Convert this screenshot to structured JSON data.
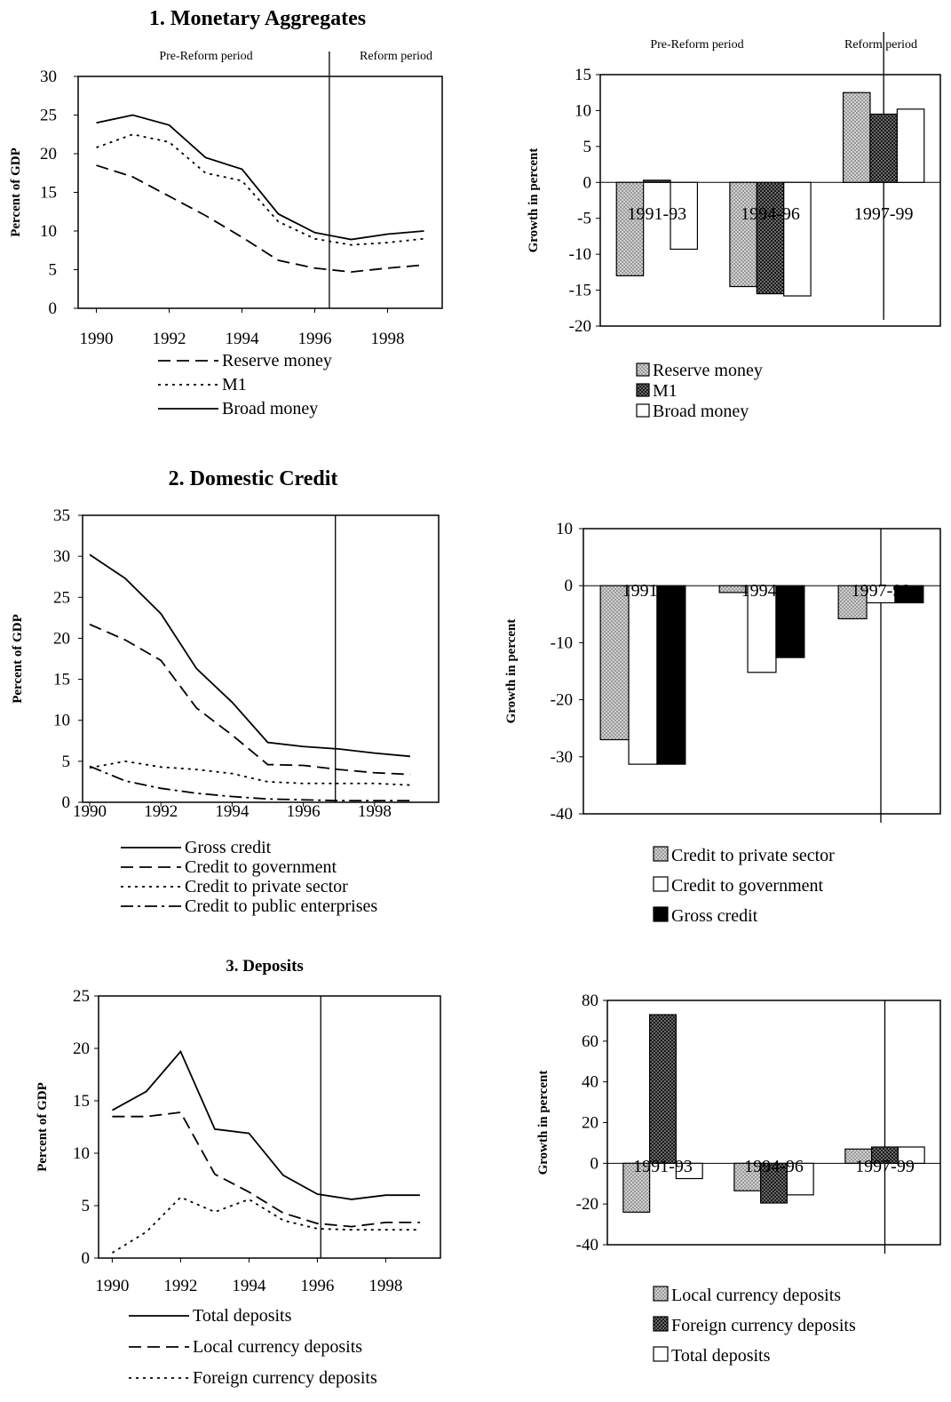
{
  "sections": [
    {
      "title": "1. Monetary Aggregates"
    },
    {
      "title": "2. Domestic Credit"
    },
    {
      "title": "3. Deposits"
    }
  ],
  "chart_data": [
    {
      "id": "monetary-line",
      "type": "line",
      "title": "1. Monetary Aggregates",
      "ylabel": "Percent of GDP",
      "xlabel": "",
      "xlim": [
        1989.5,
        1999.5
      ],
      "ylim": [
        0,
        30
      ],
      "yticks": [
        0,
        5,
        10,
        15,
        20,
        25,
        30
      ],
      "xticks": [
        1990,
        1992,
        1994,
        1996,
        1998
      ],
      "divider": 1996.4,
      "period_labels": [
        "Pre-Reform period",
        "Reform period"
      ],
      "legend_placement": "bottom",
      "series": [
        {
          "name": "Reserve money",
          "style": "dash",
          "x": [
            1990,
            1991,
            1992,
            1993,
            1994,
            1995,
            1996,
            1997,
            1998,
            1999
          ],
          "y": [
            18.5,
            17,
            14.5,
            12,
            9.2,
            6.2,
            5.2,
            4.7,
            5.2,
            5.6
          ]
        },
        {
          "name": "M1",
          "style": "dot",
          "x": [
            1990,
            1991,
            1992,
            1993,
            1994,
            1995,
            1996,
            1997,
            1998,
            1999
          ],
          "y": [
            20.8,
            22.5,
            21.5,
            17.5,
            16.5,
            11.2,
            9,
            8.2,
            8.5,
            9
          ]
        },
        {
          "name": "Broad money",
          "style": "solid",
          "x": [
            1990,
            1991,
            1992,
            1993,
            1994,
            1995,
            1996,
            1997,
            1998,
            1999
          ],
          "y": [
            24,
            25,
            23.7,
            19.5,
            18,
            12.2,
            9.8,
            8.9,
            9.6,
            10
          ]
        }
      ]
    },
    {
      "id": "monetary-bar",
      "type": "bar",
      "ylabel": "Growth in percent",
      "xlabel": "",
      "ylim": [
        -20,
        15
      ],
      "yticks": [
        -20,
        -15,
        -10,
        -5,
        0,
        5,
        10,
        15
      ],
      "categories": [
        "1991-93",
        "1994-96",
        "1997-99"
      ],
      "period_labels": [
        "Pre-Reform period",
        "Reform period"
      ],
      "legend_placement": "bottom",
      "series": [
        {
          "name": "Reserve money",
          "fill": "gray",
          "values": [
            -13,
            -14.5,
            12.5
          ]
        },
        {
          "name": "M1",
          "fill": "dark",
          "values": [
            0.3,
            -15.5,
            9.5
          ]
        },
        {
          "name": "Broad money",
          "fill": "white",
          "values": [
            -9.3,
            -15.8,
            10.2
          ]
        }
      ]
    },
    {
      "id": "credit-line",
      "type": "line",
      "title": "2. Domestic Credit",
      "ylabel": "Percent of GDP",
      "xlabel": "",
      "xlim": [
        1989.8,
        1999.8
      ],
      "ylim": [
        0,
        35
      ],
      "yticks": [
        0,
        5,
        10,
        15,
        20,
        25,
        30,
        35
      ],
      "xticks": [
        1990,
        1992,
        1994,
        1996,
        1998
      ],
      "divider": 1996.9,
      "legend_placement": "bottom",
      "series": [
        {
          "name": "Gross credit",
          "style": "solid",
          "x": [
            1990,
            1991,
            1992,
            1993,
            1994,
            1995,
            1996,
            1997,
            1998,
            1999
          ],
          "y": [
            30.2,
            27.3,
            23,
            16.3,
            12.2,
            7.3,
            6.8,
            6.5,
            6,
            5.6
          ]
        },
        {
          "name": "Credit to government",
          "style": "dash",
          "x": [
            1990,
            1991,
            1992,
            1993,
            1994,
            1995,
            1996,
            1997,
            1998,
            1999
          ],
          "y": [
            21.7,
            19.8,
            17.3,
            11.5,
            8.2,
            4.6,
            4.5,
            4,
            3.6,
            3.4
          ]
        },
        {
          "name": "Credit to private sector",
          "style": "dot",
          "x": [
            1990,
            1991,
            1992,
            1993,
            1994,
            1995,
            1996,
            1997,
            1998,
            1999
          ],
          "y": [
            4.2,
            5,
            4.3,
            4,
            3.5,
            2.5,
            2.3,
            2.3,
            2.3,
            2.1
          ]
        },
        {
          "name": "Credit to public enterprises",
          "style": "dashdot",
          "x": [
            1990,
            1991,
            1992,
            1993,
            1994,
            1995,
            1996,
            1997,
            1998,
            1999
          ],
          "y": [
            4.4,
            2.6,
            1.7,
            1.1,
            0.7,
            0.4,
            0.3,
            0.2,
            0.2,
            0.2
          ]
        }
      ]
    },
    {
      "id": "credit-bar",
      "type": "bar",
      "ylabel": "Growth in percent",
      "xlabel": "",
      "ylim": [
        -40,
        10
      ],
      "yticks": [
        -40,
        -30,
        -20,
        -10,
        0,
        10
      ],
      "categories": [
        "1991-",
        "1994-",
        "1997-99"
      ],
      "legend_placement": "bottom",
      "series": [
        {
          "name": "Credit to private sector",
          "fill": "gray",
          "values": [
            -27,
            -1.2,
            -5.8
          ]
        },
        {
          "name": "Credit to government",
          "fill": "white",
          "values": [
            -31.3,
            -15.2,
            -3
          ]
        },
        {
          "name": "Gross credit",
          "fill": "black",
          "values": [
            -31.3,
            -12.6,
            -3
          ]
        }
      ]
    },
    {
      "id": "deposits-line",
      "type": "line",
      "title": "3. Deposits",
      "ylabel": "Percent of GDP",
      "xlabel": "",
      "xlim": [
        1989.6,
        1999.6
      ],
      "ylim": [
        0,
        25
      ],
      "yticks": [
        0,
        5,
        10,
        15,
        20,
        25
      ],
      "xticks": [
        1990,
        1992,
        1994,
        1996,
        1998
      ],
      "divider": 1996.1,
      "legend_placement": "bottom",
      "series": [
        {
          "name": "Total deposits",
          "style": "solid",
          "x": [
            1990,
            1991,
            1992,
            1993,
            1994,
            1995,
            1996,
            1997,
            1998,
            1999
          ],
          "y": [
            14.1,
            15.9,
            19.7,
            12.3,
            11.9,
            7.9,
            6.1,
            5.6,
            6,
            6
          ]
        },
        {
          "name": "Local currency deposits",
          "style": "dash",
          "x": [
            1990,
            1991,
            1992,
            1993,
            1994,
            1995,
            1996,
            1997,
            1998,
            1999
          ],
          "y": [
            13.5,
            13.5,
            13.9,
            8,
            6.3,
            4.3,
            3.3,
            3,
            3.4,
            3.4
          ]
        },
        {
          "name": "Foreign currency deposits",
          "style": "dot",
          "x": [
            1990,
            1991,
            1992,
            1993,
            1994,
            1995,
            1996,
            1997,
            1998,
            1999
          ],
          "y": [
            0.5,
            2.5,
            5.8,
            4.4,
            5.6,
            3.6,
            2.8,
            2.7,
            2.7,
            2.7
          ]
        }
      ]
    },
    {
      "id": "deposits-bar",
      "type": "bar",
      "ylabel": "Growth in percent",
      "xlabel": "",
      "ylim": [
        -40,
        80
      ],
      "yticks": [
        -40,
        -20,
        0,
        20,
        40,
        60,
        80
      ],
      "categories": [
        "1991-93",
        "1994-96",
        "1997-99"
      ],
      "legend_placement": "bottom",
      "series": [
        {
          "name": "Local currency deposits",
          "fill": "gray",
          "values": [
            -24,
            -13.5,
            7
          ]
        },
        {
          "name": "Foreign currency deposits",
          "fill": "dark",
          "values": [
            73,
            -19.5,
            8
          ]
        },
        {
          "name": "Total deposits",
          "fill": "white",
          "values": [
            -7.5,
            -15.5,
            8
          ]
        }
      ]
    }
  ]
}
